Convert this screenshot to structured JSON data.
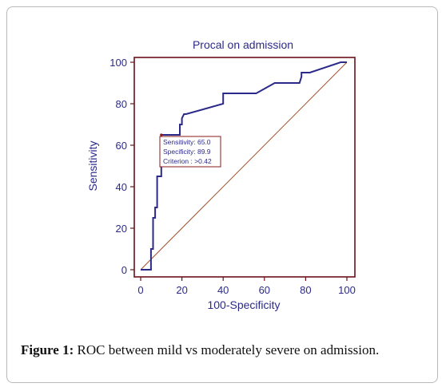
{
  "chart_data": {
    "type": "line",
    "title": "Procal on  admission",
    "xlabel": "100-Specificity",
    "ylabel": "Sensitivity",
    "xlim": [
      0,
      100
    ],
    "ylim": [
      0,
      100
    ],
    "x_ticks": [
      "0",
      "20",
      "40",
      "60",
      "80",
      "100"
    ],
    "y_ticks": [
      "0",
      "20",
      "40",
      "60",
      "80",
      "100"
    ],
    "series": [
      {
        "x": [
          0,
          3,
          5,
          5,
          6,
          6,
          7,
          7,
          8,
          8,
          10,
          10,
          19,
          19,
          20,
          20,
          21,
          22,
          40,
          40,
          56,
          65,
          77,
          78,
          78,
          82,
          97,
          100
        ],
        "y": [
          0,
          0,
          0,
          10,
          10,
          25,
          25,
          30,
          30,
          45,
          45,
          65,
          65,
          70,
          70,
          73,
          75,
          75,
          80,
          85,
          85,
          90,
          90,
          93,
          95,
          95,
          100,
          100
        ],
        "color": "#2b2a8a"
      }
    ],
    "reference_line": {
      "x": [
        0,
        100
      ],
      "y": [
        0,
        100
      ],
      "color": "#a0522d"
    },
    "annotation": {
      "lines": [
        "Sensitivity: 65.0",
        "Specificity: 89.9",
        "Criterion : >0.42"
      ],
      "anchor": {
        "x": 10,
        "y": 65
      },
      "border_color": "#8b1a1a"
    },
    "colors": {
      "axis": "#6b0f1a",
      "text": "#2b2a8a",
      "curve": "#2b2a8a"
    },
    "grid": false
  },
  "caption": {
    "label": "Figure 1:",
    "text": " ROC between mild vs moderately severe on admission."
  }
}
